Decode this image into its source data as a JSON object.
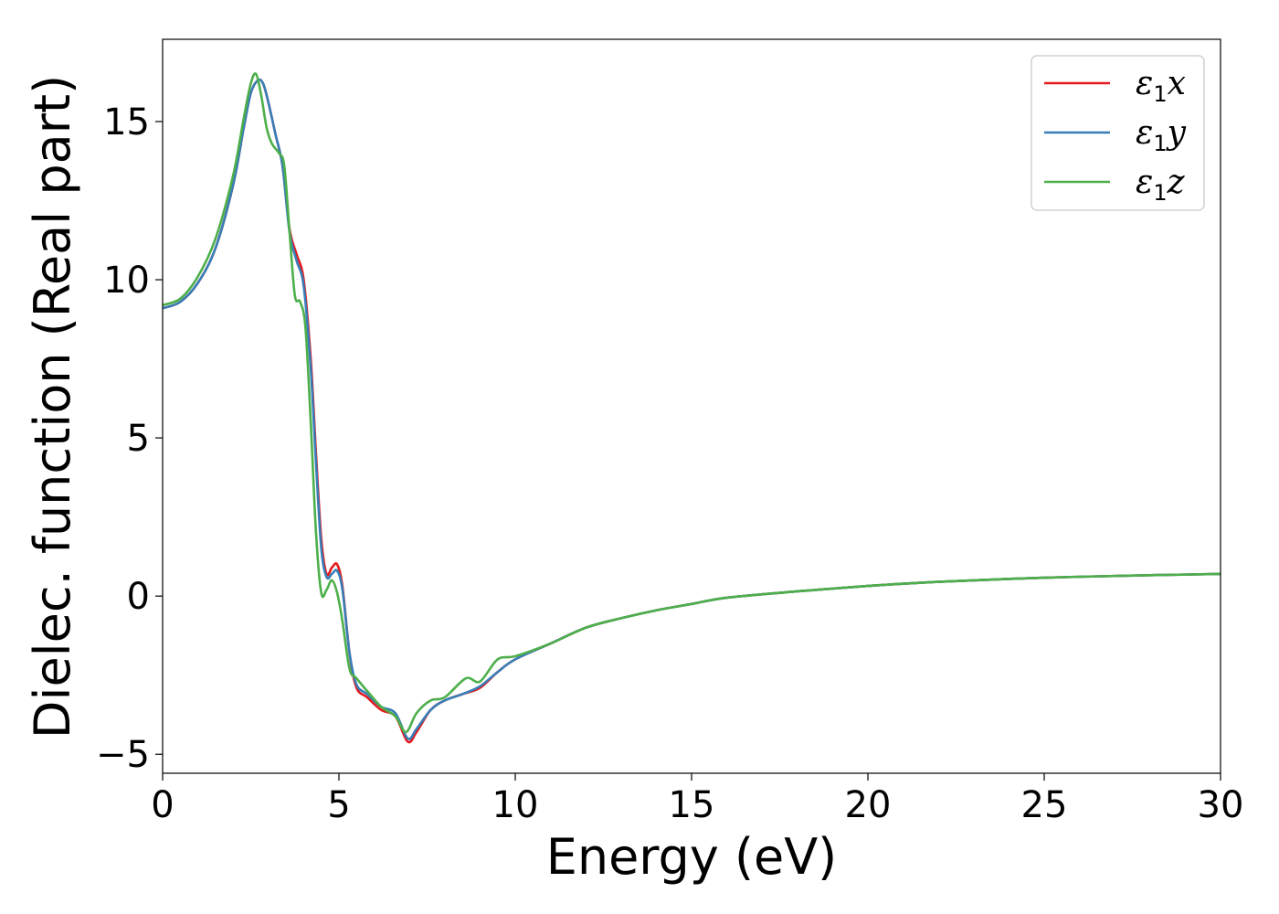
{
  "chart_data": {
    "type": "line",
    "title": "",
    "xlabel": "Energy (eV)",
    "ylabel": "Dielec. function (Real part)",
    "xlim": [
      0,
      30
    ],
    "ylim": [
      -5.6,
      17.6
    ],
    "xticks": [
      0,
      5,
      10,
      15,
      20,
      25,
      30
    ],
    "xtick_labels": [
      "0",
      "5",
      "10",
      "15",
      "20",
      "25",
      "30"
    ],
    "yticks": [
      -5,
      0,
      5,
      10,
      15
    ],
    "ytick_labels": [
      "−5",
      "0",
      "5",
      "10",
      "15"
    ],
    "grid": false,
    "legend_position": "top-right",
    "series": [
      {
        "name": "ε1x",
        "legend": {
          "symbol": "ε",
          "sub": "1",
          "axis": "x"
        },
        "color": "#e41a1c",
        "x": [
          0,
          0.5,
          1.0,
          1.5,
          2.0,
          2.3,
          2.5,
          2.7,
          2.85,
          3.0,
          3.2,
          3.4,
          3.6,
          3.8,
          4.0,
          4.2,
          4.35,
          4.5,
          4.65,
          4.8,
          4.95,
          5.1,
          5.3,
          5.5,
          5.8,
          6.2,
          6.6,
          6.95,
          7.2,
          7.6,
          8.0,
          8.5,
          9.0,
          9.5,
          10.0,
          11.0,
          12.0,
          13.0,
          14.0,
          15.0,
          16.0,
          18.0,
          20.0,
          22.0,
          25.0,
          28.0,
          30.0
        ],
        "values": [
          9.1,
          9.3,
          9.9,
          11.0,
          13.0,
          14.8,
          15.9,
          16.3,
          16.2,
          15.6,
          14.6,
          13.6,
          11.6,
          10.8,
          10.0,
          7.5,
          4.5,
          1.8,
          0.7,
          0.9,
          1.0,
          0.3,
          -1.8,
          -2.9,
          -3.2,
          -3.6,
          -3.8,
          -4.6,
          -4.3,
          -3.6,
          -3.3,
          -3.1,
          -2.9,
          -2.4,
          -2.0,
          -1.5,
          -1.0,
          -0.7,
          -0.45,
          -0.25,
          -0.05,
          0.15,
          0.32,
          0.45,
          0.58,
          0.66,
          0.7
        ]
      },
      {
        "name": "ε1y",
        "legend": {
          "symbol": "ε",
          "sub": "1",
          "axis": "y"
        },
        "color": "#377eb8",
        "x": [
          0,
          0.5,
          1.0,
          1.5,
          2.0,
          2.3,
          2.5,
          2.7,
          2.85,
          3.0,
          3.2,
          3.4,
          3.6,
          3.8,
          4.0,
          4.2,
          4.35,
          4.5,
          4.65,
          4.8,
          4.95,
          5.1,
          5.3,
          5.5,
          5.8,
          6.2,
          6.6,
          6.95,
          7.2,
          7.6,
          8.0,
          8.5,
          9.0,
          9.5,
          10.0,
          11.0,
          12.0,
          13.0,
          14.0,
          15.0,
          16.0,
          18.0,
          20.0,
          22.0,
          25.0,
          28.0,
          30.0
        ],
        "values": [
          9.1,
          9.3,
          9.9,
          11.0,
          13.0,
          14.8,
          15.9,
          16.3,
          16.2,
          15.6,
          14.6,
          13.6,
          11.5,
          10.6,
          9.8,
          7.2,
          4.2,
          1.5,
          0.6,
          0.7,
          0.8,
          0.2,
          -1.8,
          -2.8,
          -3.1,
          -3.5,
          -3.7,
          -4.5,
          -4.2,
          -3.6,
          -3.3,
          -3.1,
          -2.85,
          -2.4,
          -2.0,
          -1.5,
          -1.0,
          -0.7,
          -0.45,
          -0.25,
          -0.05,
          0.15,
          0.32,
          0.45,
          0.58,
          0.66,
          0.7
        ]
      },
      {
        "name": "ε1z",
        "legend": {
          "symbol": "ε",
          "sub": "1",
          "axis": "z"
        },
        "color": "#4daf4a",
        "x": [
          0,
          0.5,
          1.0,
          1.5,
          2.0,
          2.3,
          2.5,
          2.65,
          2.8,
          2.95,
          3.1,
          3.3,
          3.45,
          3.6,
          3.75,
          3.9,
          4.05,
          4.2,
          4.35,
          4.5,
          4.65,
          4.8,
          4.95,
          5.1,
          5.3,
          5.5,
          5.8,
          6.2,
          6.6,
          6.9,
          7.2,
          7.6,
          8.0,
          8.6,
          9.0,
          9.5,
          10.0,
          11.0,
          12.0,
          13.0,
          14.0,
          15.0,
          16.0,
          18.0,
          20.0,
          22.0,
          25.0,
          28.0,
          30.0
        ],
        "values": [
          9.2,
          9.4,
          10.1,
          11.3,
          13.3,
          15.1,
          16.2,
          16.5,
          15.8,
          14.8,
          14.3,
          14.0,
          13.6,
          11.5,
          9.5,
          9.3,
          8.5,
          5.5,
          2.0,
          0.1,
          0.2,
          0.5,
          0.1,
          -0.8,
          -2.3,
          -2.6,
          -3.0,
          -3.5,
          -3.8,
          -4.3,
          -3.7,
          -3.3,
          -3.2,
          -2.6,
          -2.7,
          -2.0,
          -1.9,
          -1.5,
          -1.0,
          -0.7,
          -0.45,
          -0.25,
          -0.05,
          0.15,
          0.32,
          0.45,
          0.58,
          0.66,
          0.7
        ]
      }
    ]
  }
}
